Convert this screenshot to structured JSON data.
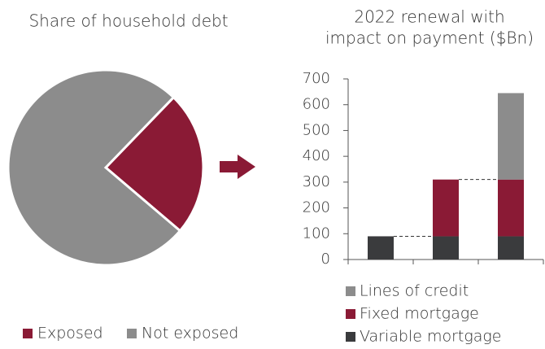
{
  "chart_data": [
    {
      "type": "pie",
      "title": "Share of household debt",
      "categories": [
        "Exposed",
        "Not exposed"
      ],
      "values": [
        24,
        76
      ],
      "colors": [
        "#8a1a35",
        "#8c8c8c"
      ],
      "legend": "bottom"
    },
    {
      "type": "bar",
      "stacked": true,
      "title": [
        "2022 renewal with",
        "impact on payment ($Bn)"
      ],
      "categories": [
        null,
        null,
        null
      ],
      "series": [
        {
          "name": "Variable mortgage",
          "color": "#3a3b3d",
          "values": [
            90,
            90,
            90
          ]
        },
        {
          "name": "Fixed mortgage",
          "color": "#8a1a35",
          "values": [
            null,
            220,
            220
          ]
        },
        {
          "name": "Lines of credit",
          "color": "#8c8c8c",
          "values": [
            null,
            null,
            335
          ]
        }
      ],
      "ylim": [
        0,
        700
      ],
      "yticks": [
        0,
        100,
        200,
        300,
        400,
        500,
        600,
        700
      ],
      "legend": "bottom"
    }
  ]
}
